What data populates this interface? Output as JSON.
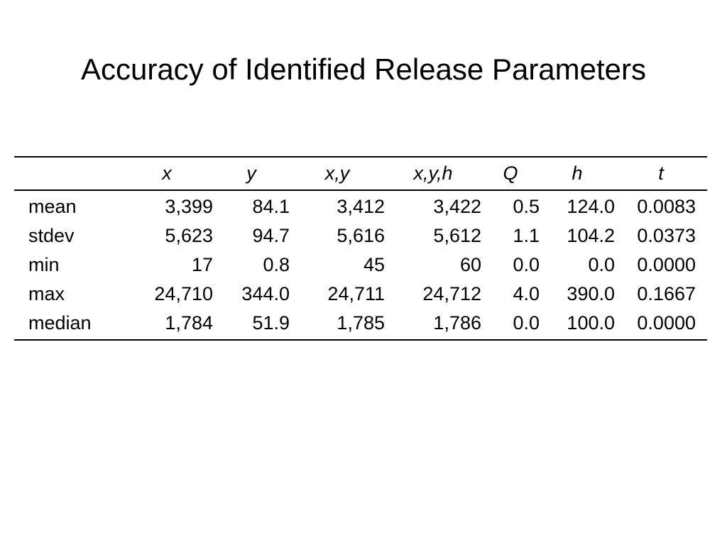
{
  "slide": {
    "title": "Accuracy of Identified Release Parameters"
  },
  "table": {
    "columns": [
      "",
      "x",
      "y",
      "x,y",
      "x,y,h",
      "Q",
      "h",
      "t"
    ],
    "rows": [
      {
        "label": "mean",
        "values": [
          "3,399",
          "84.1",
          "3,412",
          "3,422",
          "0.5",
          "124.0",
          "0.0083"
        ]
      },
      {
        "label": "stdev",
        "values": [
          "5,623",
          "94.7",
          "5,616",
          "5,612",
          "1.1",
          "104.2",
          "0.0373"
        ]
      },
      {
        "label": "min",
        "values": [
          "17",
          "0.8",
          "45",
          "60",
          "0.0",
          "0.0",
          "0.0000"
        ]
      },
      {
        "label": "max",
        "values": [
          "24,710",
          "344.0",
          "24,711",
          "24,712",
          "4.0",
          "390.0",
          "0.1667"
        ]
      },
      {
        "label": "median",
        "values": [
          "1,784",
          "51.9",
          "1,785",
          "1,786",
          "0.0",
          "100.0",
          "0.0000"
        ]
      }
    ]
  }
}
